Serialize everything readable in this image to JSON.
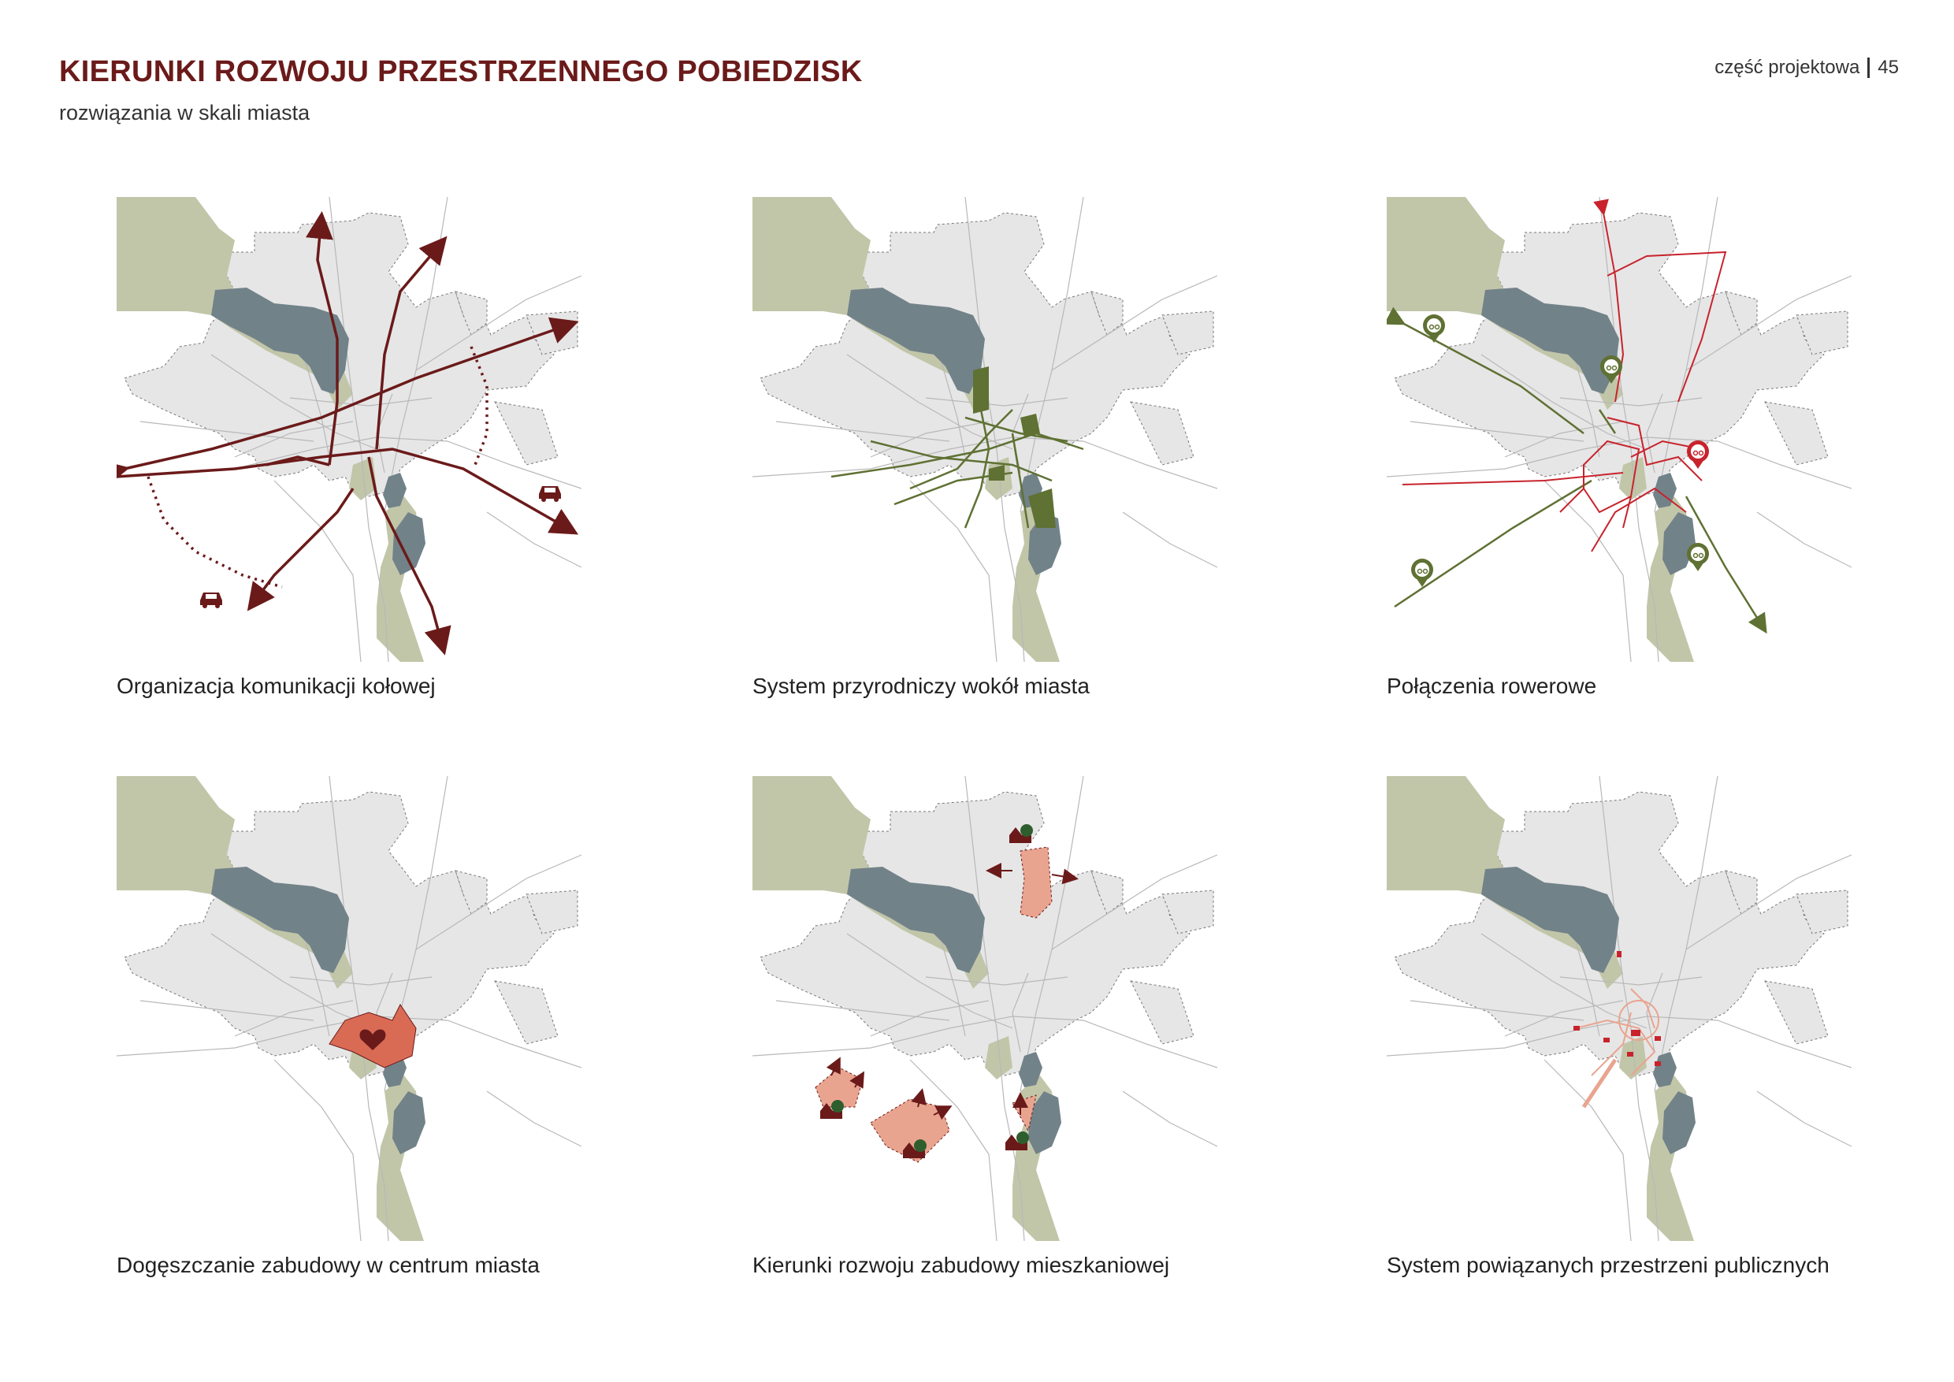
{
  "header": {
    "title": "KIERUNKI ROZWOJU PRZESTRZENNEGO POBIEDZISK",
    "subtitle": "rozwiązania w skali miasta",
    "section": "część projektowa",
    "page_number": "45"
  },
  "colors": {
    "title": "#6b1a1a",
    "green_area": "#c2c6a9",
    "water": "#728289",
    "urban": "#e6e6e6",
    "road_network": "#6b1a1a",
    "nature": "#5f7133",
    "bike_red": "#c8232c",
    "development": "#e9a48f",
    "center": "#d96b55"
  },
  "maps": [
    {
      "caption": "Organizacja komunikacji kołowej",
      "icons": [
        "car-icon",
        "car-icon"
      ]
    },
    {
      "caption": "System przyrodniczy wokół miasta",
      "icons": []
    },
    {
      "caption": "Połączenia rowerowe",
      "icons": [
        "bike-pin-icon"
      ]
    },
    {
      "caption": "Dogęszczanie zabudowy w centrum miasta",
      "icons": [
        "heart-icon"
      ]
    },
    {
      "caption": "Kierunki rozwoju zabudowy mieszkaniowej",
      "icons": [
        "house-tree-icon"
      ]
    },
    {
      "caption": "System powiązanych przestrzeni publicznych",
      "icons": []
    }
  ]
}
